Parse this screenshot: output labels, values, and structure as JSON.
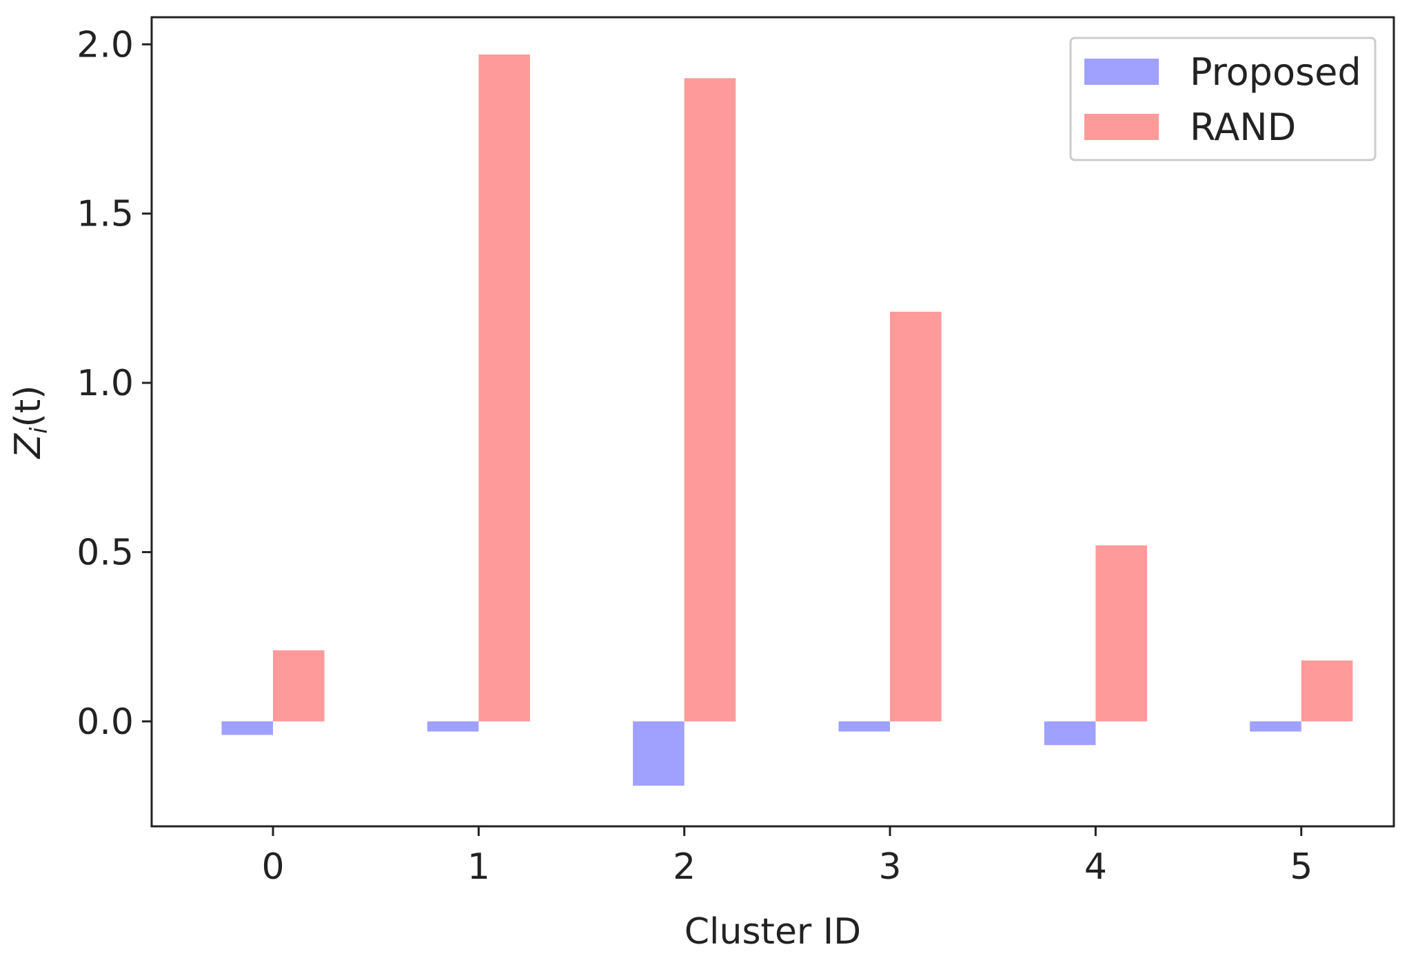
{
  "chart_data": {
    "type": "bar",
    "title": "",
    "xlabel": "Cluster ID",
    "ylabel": "Z_i(t)",
    "ylabel_base": "Z",
    "ylabel_subscript": "i",
    "ylabel_suffix": "(t)",
    "categories": [
      "0",
      "1",
      "2",
      "3",
      "4",
      "5"
    ],
    "series": [
      {
        "name": "Proposed",
        "color": "#a0a0ff",
        "values": [
          -0.04,
          -0.03,
          -0.19,
          -0.03,
          -0.07,
          -0.03
        ]
      },
      {
        "name": "RAND",
        "color": "#ff9a9a",
        "values": [
          0.21,
          1.97,
          1.9,
          1.21,
          0.52,
          0.18
        ]
      }
    ],
    "ylim": [
      -0.31,
      2.08
    ],
    "yticks": [
      0.0,
      0.5,
      1.0,
      1.5,
      2.0
    ],
    "ytick_labels": [
      "0.0",
      "0.5",
      "1.0",
      "1.5",
      "2.0"
    ],
    "grid": false,
    "legend_position": "top-right"
  }
}
